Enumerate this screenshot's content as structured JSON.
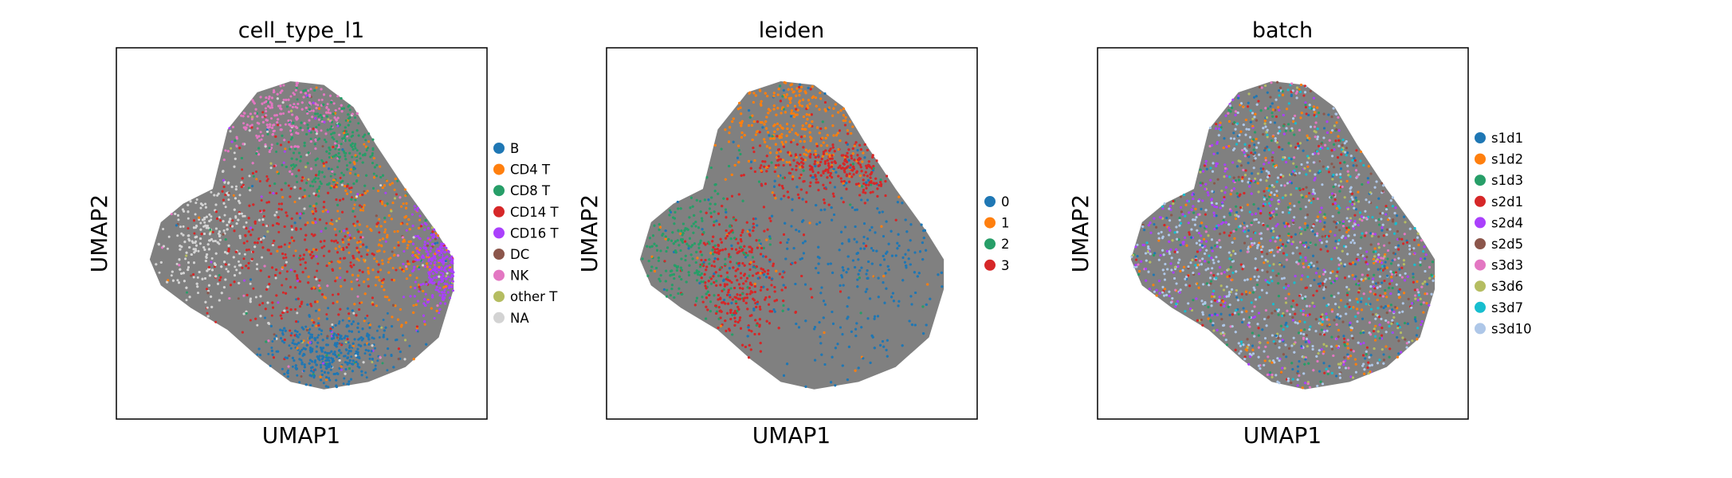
{
  "chart_data": [
    {
      "type": "scatter",
      "title": "cell_type_l1",
      "xlabel": "UMAP1",
      "ylabel": "UMAP2",
      "grid": false,
      "legend_position": "right",
      "legend": [
        {
          "label": "B",
          "color": "#1f77b4"
        },
        {
          "label": "CD4 T",
          "color": "#ff7f0e"
        },
        {
          "label": "CD8 T",
          "color": "#279e68"
        },
        {
          "label": "CD14 T",
          "color": "#d62728"
        },
        {
          "label": "CD16 T",
          "color": "#aa40fc"
        },
        {
          "label": "DC",
          "color": "#8c564b"
        },
        {
          "label": "NK",
          "color": "#e377c2"
        },
        {
          "label": "other T",
          "color": "#b5bd61"
        },
        {
          "label": "NA",
          "color": "#d3d3d3"
        }
      ],
      "regions": [
        {
          "label": "NK",
          "center": [
            0.43,
            0.84
          ],
          "spread": [
            0.11,
            0.07
          ]
        },
        {
          "label": "CD8 T",
          "center": [
            0.6,
            0.75
          ],
          "spread": [
            0.1,
            0.09
          ]
        },
        {
          "label": "NA",
          "center": [
            0.23,
            0.5
          ],
          "spread": [
            0.09,
            0.12
          ]
        },
        {
          "label": "CD14 T",
          "center": [
            0.49,
            0.45
          ],
          "spread": [
            0.14,
            0.13
          ]
        },
        {
          "label": "CD4 T",
          "center": [
            0.73,
            0.5
          ],
          "spread": [
            0.12,
            0.14
          ]
        },
        {
          "label": "CD16 T",
          "center": [
            0.88,
            0.43
          ],
          "spread": [
            0.04,
            0.06
          ]
        },
        {
          "label": "B",
          "center": [
            0.58,
            0.18
          ],
          "spread": [
            0.09,
            0.05
          ]
        }
      ]
    },
    {
      "type": "scatter",
      "title": "leiden",
      "xlabel": "UMAP1",
      "ylabel": "UMAP2",
      "grid": false,
      "legend_position": "right",
      "legend": [
        {
          "label": "0",
          "color": "#1f77b4"
        },
        {
          "label": "1",
          "color": "#ff7f0e"
        },
        {
          "label": "2",
          "color": "#279e68"
        },
        {
          "label": "3",
          "color": "#d62728"
        }
      ],
      "regions": [
        {
          "label": "1",
          "center": [
            0.49,
            0.82
          ],
          "spread": [
            0.12,
            0.08
          ]
        },
        {
          "label": "2",
          "center": [
            0.18,
            0.45
          ],
          "spread": [
            0.09,
            0.12
          ]
        },
        {
          "label": "0",
          "center": [
            0.66,
            0.4
          ],
          "spread": [
            0.17,
            0.17
          ]
        },
        {
          "label": "3",
          "center": [
            0.36,
            0.36
          ],
          "spread": [
            0.06,
            0.1
          ]
        },
        {
          "label": "3",
          "center": [
            0.63,
            0.68
          ],
          "spread": [
            0.12,
            0.04
          ]
        }
      ]
    },
    {
      "type": "scatter",
      "title": "batch",
      "xlabel": "UMAP1",
      "ylabel": "UMAP2",
      "grid": false,
      "legend_position": "right",
      "legend": [
        {
          "label": "s1d1",
          "color": "#1f77b4"
        },
        {
          "label": "s1d2",
          "color": "#ff7f0e"
        },
        {
          "label": "s1d3",
          "color": "#279e68"
        },
        {
          "label": "s2d1",
          "color": "#d62728"
        },
        {
          "label": "s2d4",
          "color": "#aa40fc"
        },
        {
          "label": "s2d5",
          "color": "#8c564b"
        },
        {
          "label": "s3d3",
          "color": "#e377c2"
        },
        {
          "label": "s3d6",
          "color": "#b5bd61"
        },
        {
          "label": "s3d7",
          "color": "#17becf"
        },
        {
          "label": "s3d10",
          "color": "#aec7e8"
        }
      ]
    }
  ]
}
